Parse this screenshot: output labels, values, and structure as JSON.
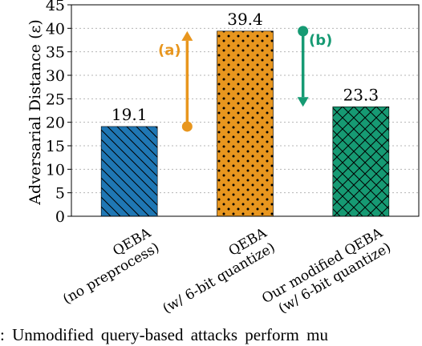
{
  "chart_data": {
    "type": "bar",
    "ylabel": "Adversarial Distance (ε)",
    "ylim": [
      0,
      45
    ],
    "yticks": [
      0,
      5,
      10,
      15,
      20,
      25,
      30,
      35,
      40,
      45
    ],
    "grid": "horizontal dotted",
    "categories": [
      [
        "QEBA",
        "(no preprocess)"
      ],
      [
        "QEBA",
        "(w/ 6-bit quantize)"
      ],
      [
        "Our modified QEBA",
        "(w/ 6-bit quantize)"
      ]
    ],
    "values": [
      19.1,
      39.4,
      23.3
    ],
    "value_labels": [
      "19.1",
      "39.4",
      "23.3"
    ],
    "colors": [
      "#1f77b4",
      "#e8961e",
      "#169a73"
    ],
    "patterns": [
      "diagonal-back",
      "dots",
      "crosshatch"
    ],
    "annotations": [
      {
        "label": "(a)",
        "color": "#e8961e",
        "from": 19.1,
        "to": 39.4
      },
      {
        "label": "(b)",
        "color": "#169a73",
        "from": 39.4,
        "to": 23.3
      }
    ]
  },
  "caption": ": Unmodified query-based attacks perform mu"
}
